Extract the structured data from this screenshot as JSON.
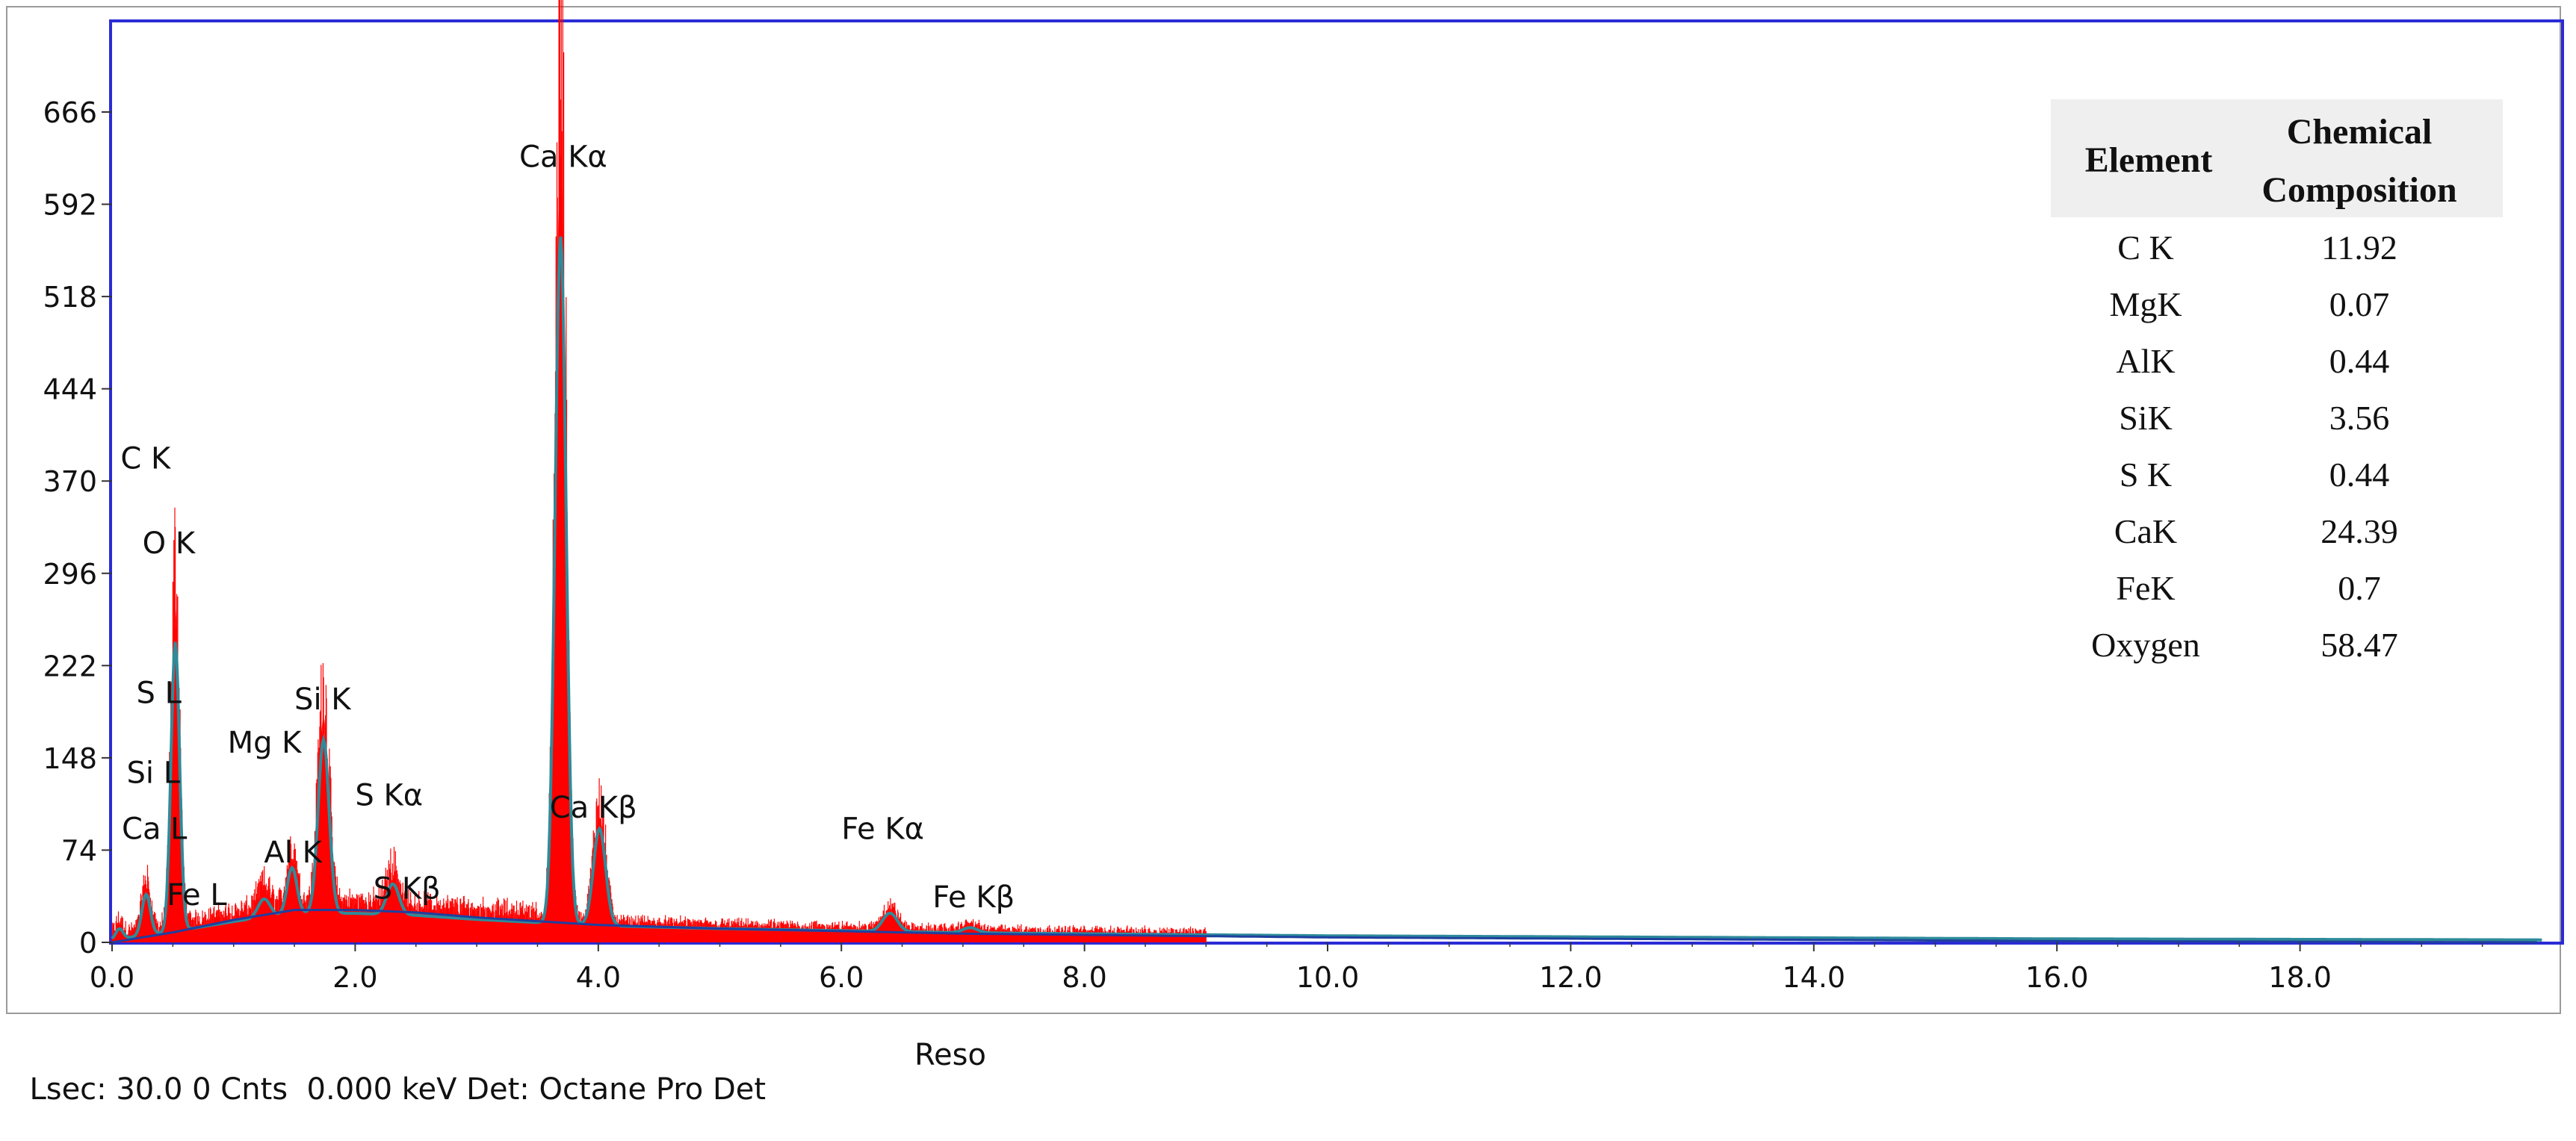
{
  "chart_data": {
    "type": "line",
    "xlim": [
      0,
      20
    ],
    "ylim": [
      0,
      700
    ],
    "x_ticks": [
      "0.0",
      "2.0",
      "4.0",
      "6.0",
      "8.0",
      "10.0",
      "12.0",
      "14.0",
      "16.0",
      "18.0"
    ],
    "x_tick_values": [
      0,
      2,
      4,
      6,
      8,
      10,
      12,
      14,
      16,
      18
    ],
    "y_ticks": [
      "0",
      "74",
      "148",
      "222",
      "296",
      "370",
      "444",
      "518",
      "592",
      "666"
    ],
    "y_tick_values": [
      0,
      74,
      148,
      222,
      296,
      370,
      444,
      518,
      592,
      666
    ],
    "grid": false,
    "colors": {
      "spectrum": "#ff0000",
      "fit": "#2e8b9a",
      "background": "#1f3fa0",
      "plot_border": "#2b2bd6"
    },
    "peaks": [
      {
        "x": 0.06,
        "y": 10,
        "w": 0.03
      },
      {
        "x": 0.28,
        "y": 40,
        "w": 0.035
      },
      {
        "x": 0.52,
        "y": 283,
        "w": 0.035
      },
      {
        "x": 1.25,
        "y": 18,
        "w": 0.05
      },
      {
        "x": 1.48,
        "y": 45,
        "w": 0.04
      },
      {
        "x": 1.74,
        "y": 170,
        "w": 0.045
      },
      {
        "x": 2.31,
        "y": 30,
        "w": 0.05
      },
      {
        "x": 3.69,
        "y": 672,
        "w": 0.045
      },
      {
        "x": 4.01,
        "y": 95,
        "w": 0.05
      },
      {
        "x": 6.4,
        "y": 18,
        "w": 0.06
      },
      {
        "x": 7.06,
        "y": 5,
        "w": 0.06
      }
    ],
    "background_curve": {
      "x": [
        0.0,
        0.5,
        1.0,
        1.5,
        2.0,
        2.5,
        3.0,
        3.5,
        4.0,
        5.0,
        6.0,
        7.0,
        8.0,
        10.0,
        12.0,
        14.0,
        16.0,
        20.0
      ],
      "y": [
        0,
        8,
        18,
        26,
        26,
        24,
        20,
        17,
        14,
        11,
        9,
        7,
        6,
        4,
        3,
        2,
        1,
        0
      ]
    },
    "peak_labels": [
      {
        "text": "C  K",
        "x": 0.07,
        "y": 380
      },
      {
        "text": "O  K",
        "x": 0.25,
        "y": 312
      },
      {
        "text": "S  L",
        "x": 0.2,
        "y": 192
      },
      {
        "text": "Si L",
        "x": 0.12,
        "y": 128
      },
      {
        "text": "Ca L",
        "x": 0.08,
        "y": 83
      },
      {
        "text": "Fe L",
        "x": 0.45,
        "y": 30
      },
      {
        "text": "Mg K",
        "x": 0.95,
        "y": 152
      },
      {
        "text": "Si K",
        "x": 1.5,
        "y": 187
      },
      {
        "text": "Al K",
        "x": 1.25,
        "y": 64
      },
      {
        "text": "S  Kα",
        "x": 2.0,
        "y": 110
      },
      {
        "text": "S  Kβ",
        "x": 2.15,
        "y": 35
      },
      {
        "text": "Ca Kα",
        "x": 3.35,
        "y": 622
      },
      {
        "text": "Ca Kβ",
        "x": 3.6,
        "y": 100
      },
      {
        "text": "Fe Kα",
        "x": 6.0,
        "y": 83
      },
      {
        "text": "Fe Kβ",
        "x": 6.75,
        "y": 28
      }
    ],
    "composition_table": {
      "headers": [
        "Element",
        "Chemical",
        "Composition"
      ],
      "rows": [
        [
          "C K",
          "11.92"
        ],
        [
          "MgK",
          "0.07"
        ],
        [
          "AlK",
          "0.44"
        ],
        [
          "SiK",
          "3.56"
        ],
        [
          "S K",
          "0.44"
        ],
        [
          "CaK",
          "24.39"
        ],
        [
          "FeK",
          "0.7"
        ],
        [
          "Oxygen",
          "58.47"
        ]
      ]
    }
  },
  "footer": {
    "status": "Lsec: 30.0 0 Cnts  0.000 keV Det: Octane Pro Det",
    "reso": "Reso"
  }
}
